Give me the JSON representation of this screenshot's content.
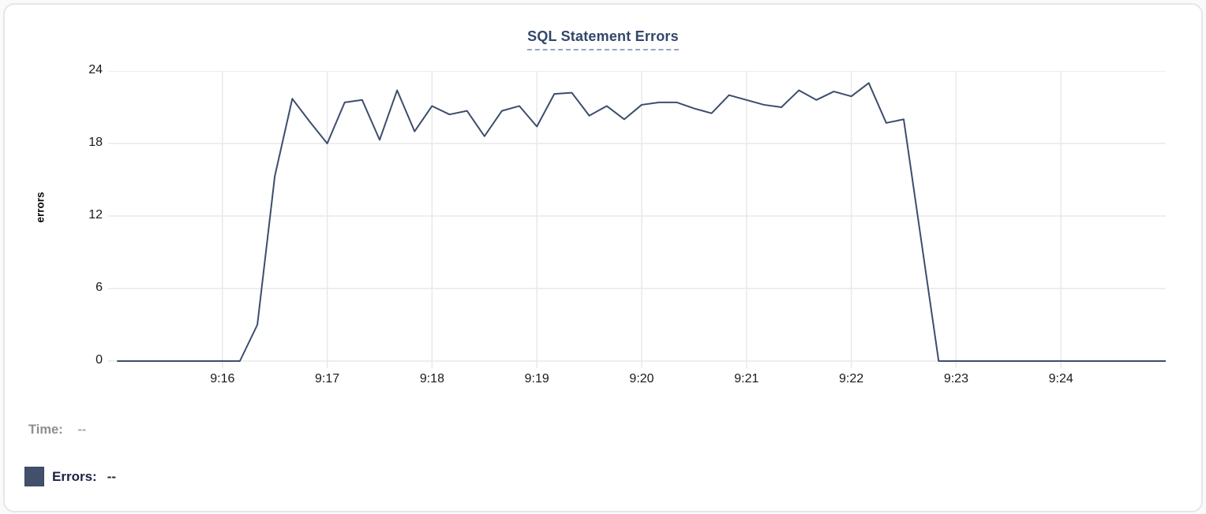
{
  "chart_data": {
    "type": "line",
    "title": "SQL Statement Errors",
    "ylabel": "errors",
    "xlabel": "",
    "grid": true,
    "legend_position": "bottom-left",
    "ylim": [
      0,
      24
    ],
    "y_ticks": [
      0,
      6,
      12,
      18,
      24
    ],
    "xlim_seconds": [
      0,
      600
    ],
    "x_ticks": [
      {
        "sec": 60,
        "label": "9:16"
      },
      {
        "sec": 120,
        "label": "9:17"
      },
      {
        "sec": 180,
        "label": "9:18"
      },
      {
        "sec": 240,
        "label": "9:19"
      },
      {
        "sec": 300,
        "label": "9:20"
      },
      {
        "sec": 360,
        "label": "9:21"
      },
      {
        "sec": 420,
        "label": "9:22"
      },
      {
        "sec": 480,
        "label": "9:23"
      },
      {
        "sec": 540,
        "label": "9:24"
      }
    ],
    "series": [
      {
        "name": "Errors",
        "color": "#3d4d6d",
        "x_seconds": [
          0,
          10,
          20,
          30,
          40,
          50,
          60,
          70,
          80,
          90,
          100,
          110,
          120,
          130,
          140,
          150,
          160,
          170,
          180,
          190,
          200,
          210,
          220,
          230,
          240,
          250,
          260,
          270,
          280,
          290,
          300,
          310,
          320,
          330,
          340,
          350,
          360,
          370,
          380,
          390,
          400,
          410,
          420,
          430,
          440,
          450,
          460,
          470,
          480,
          490,
          500,
          510,
          520,
          530,
          540,
          550,
          560,
          570,
          580,
          590,
          600
        ],
        "values": [
          0,
          0,
          0,
          0,
          0,
          0,
          0,
          0,
          3,
          15.3,
          21.7,
          19.8,
          18,
          21.4,
          21.6,
          18.3,
          22.4,
          19,
          21.1,
          20.4,
          20.7,
          18.6,
          20.7,
          21.1,
          19.4,
          22.1,
          22.2,
          20.3,
          21.1,
          20,
          21.2,
          21.4,
          21.4,
          20.9,
          20.5,
          22,
          21.6,
          21.2,
          21,
          22.4,
          21.6,
          22.3,
          21.9,
          23,
          19.7,
          20,
          10,
          0,
          0,
          0,
          0,
          0,
          0,
          0,
          0,
          0,
          0,
          0,
          0,
          0,
          0
        ]
      }
    ]
  },
  "footer": {
    "time_label": "Time:",
    "time_value": "--",
    "errors_label": "Errors:",
    "errors_value": "--",
    "legend_color": "#42506c"
  },
  "colors": {
    "line": "#3d4d6d",
    "gridline": "#e8e9eb",
    "title": "#33476b",
    "title_underline": "#96a5c0",
    "card_border": "#e6e6ea",
    "tick_text": "#19191b"
  }
}
